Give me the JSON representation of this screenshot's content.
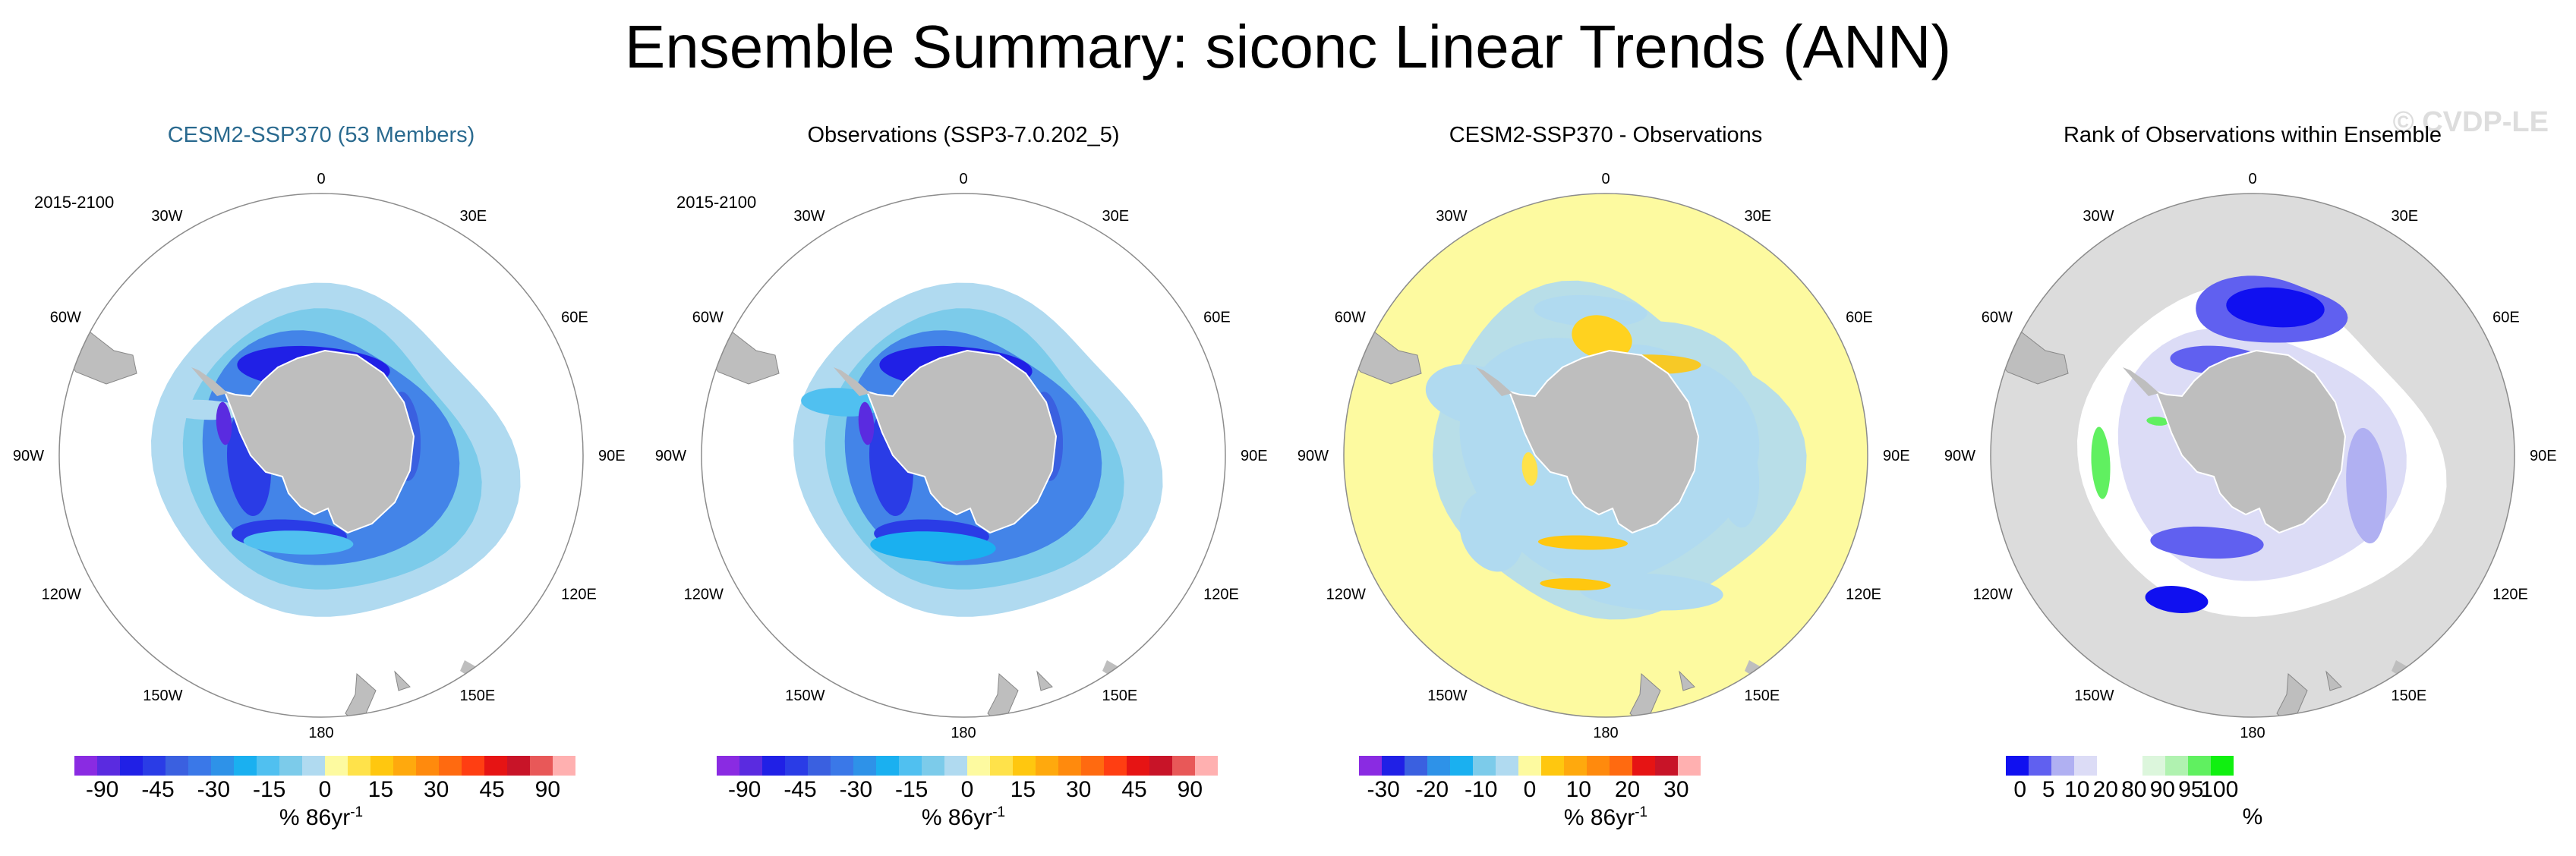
{
  "title": "Ensemble Summary: siconc Linear Trends (ANN)",
  "watermark": "© CVDP-LE",
  "lon_labels": [
    "0",
    "30E",
    "60E",
    "90E",
    "120E",
    "150E",
    "180",
    "150W",
    "120W",
    "90W",
    "60W",
    "30W"
  ],
  "panels": [
    {
      "title": "CESM2-SSP370 (53 Members)",
      "title_color": "#2a6a8f",
      "period": "2015-2100",
      "colorbar": {
        "colors": [
          "#8a2be2",
          "#5a2be0",
          "#2020e6",
          "#2a3ce6",
          "#3a60e0",
          "#3a78e8",
          "#2e92e8",
          "#1ab0f0",
          "#50c0f0",
          "#7ccbea",
          "#b0daf0",
          "#fdfaa0",
          "#ffe24a",
          "#ffc70f",
          "#ffa90d",
          "#ff8a0d",
          "#ff6a10",
          "#ff3e12",
          "#e61414",
          "#c81428",
          "#e85858",
          "#ffb0b0"
        ],
        "ticks": [
          "-90",
          "-45",
          "-30",
          "-15",
          "0",
          "15",
          "30",
          "45",
          "90"
        ],
        "units": "% 86yr",
        "units_exp": "-1"
      },
      "map_style": "model"
    },
    {
      "title": "Observations (SSP3-7.0.202_5)",
      "title_color": "#000000",
      "period": "2015-2100",
      "colorbar": {
        "colors": [
          "#8a2be2",
          "#5a2be0",
          "#2020e6",
          "#2a3ce6",
          "#3a60e0",
          "#3a78e8",
          "#2e92e8",
          "#1ab0f0",
          "#50c0f0",
          "#7ccbea",
          "#b0daf0",
          "#fdfaa0",
          "#ffe24a",
          "#ffc70f",
          "#ffa90d",
          "#ff8a0d",
          "#ff6a10",
          "#ff3e12",
          "#e61414",
          "#c81428",
          "#e85858",
          "#ffb0b0"
        ],
        "ticks": [
          "-90",
          "-45",
          "-30",
          "-15",
          "0",
          "15",
          "30",
          "45",
          "90"
        ],
        "units": "% 86yr",
        "units_exp": "-1"
      },
      "map_style": "obs"
    },
    {
      "title": "CESM2-SSP370 - Observations",
      "title_color": "#000000",
      "period": "",
      "colorbar": {
        "colors": [
          "#8a2be2",
          "#2020e6",
          "#3a60e0",
          "#2e92e8",
          "#1ab0f0",
          "#7ccbea",
          "#b0daf0",
          "#fdfaa0",
          "#ffc70f",
          "#ffa90d",
          "#ff8a0d",
          "#ff6a10",
          "#e61414",
          "#c81428",
          "#ffb0b0"
        ],
        "ticks": [
          "-30",
          "-20",
          "-10",
          "0",
          "10",
          "20",
          "30"
        ],
        "units": "% 86yr",
        "units_exp": "-1"
      },
      "map_style": "diff"
    },
    {
      "title": "Rank of Observations within Ensemble",
      "title_color": "#000000",
      "period": "",
      "colorbar": {
        "colors": [
          "#1010f0",
          "#6060f0",
          "#b0b0f2",
          "#dcdcf6",
          "#ffffff",
          "#ffffff",
          "#dcf6dc",
          "#b0f2b0",
          "#60f060",
          "#10f010"
        ],
        "ticks": [
          "0",
          "5",
          "10",
          "20",
          "80",
          "90",
          "95",
          "100"
        ],
        "units": "%",
        "units_exp": ""
      },
      "map_style": "rank"
    }
  ]
}
